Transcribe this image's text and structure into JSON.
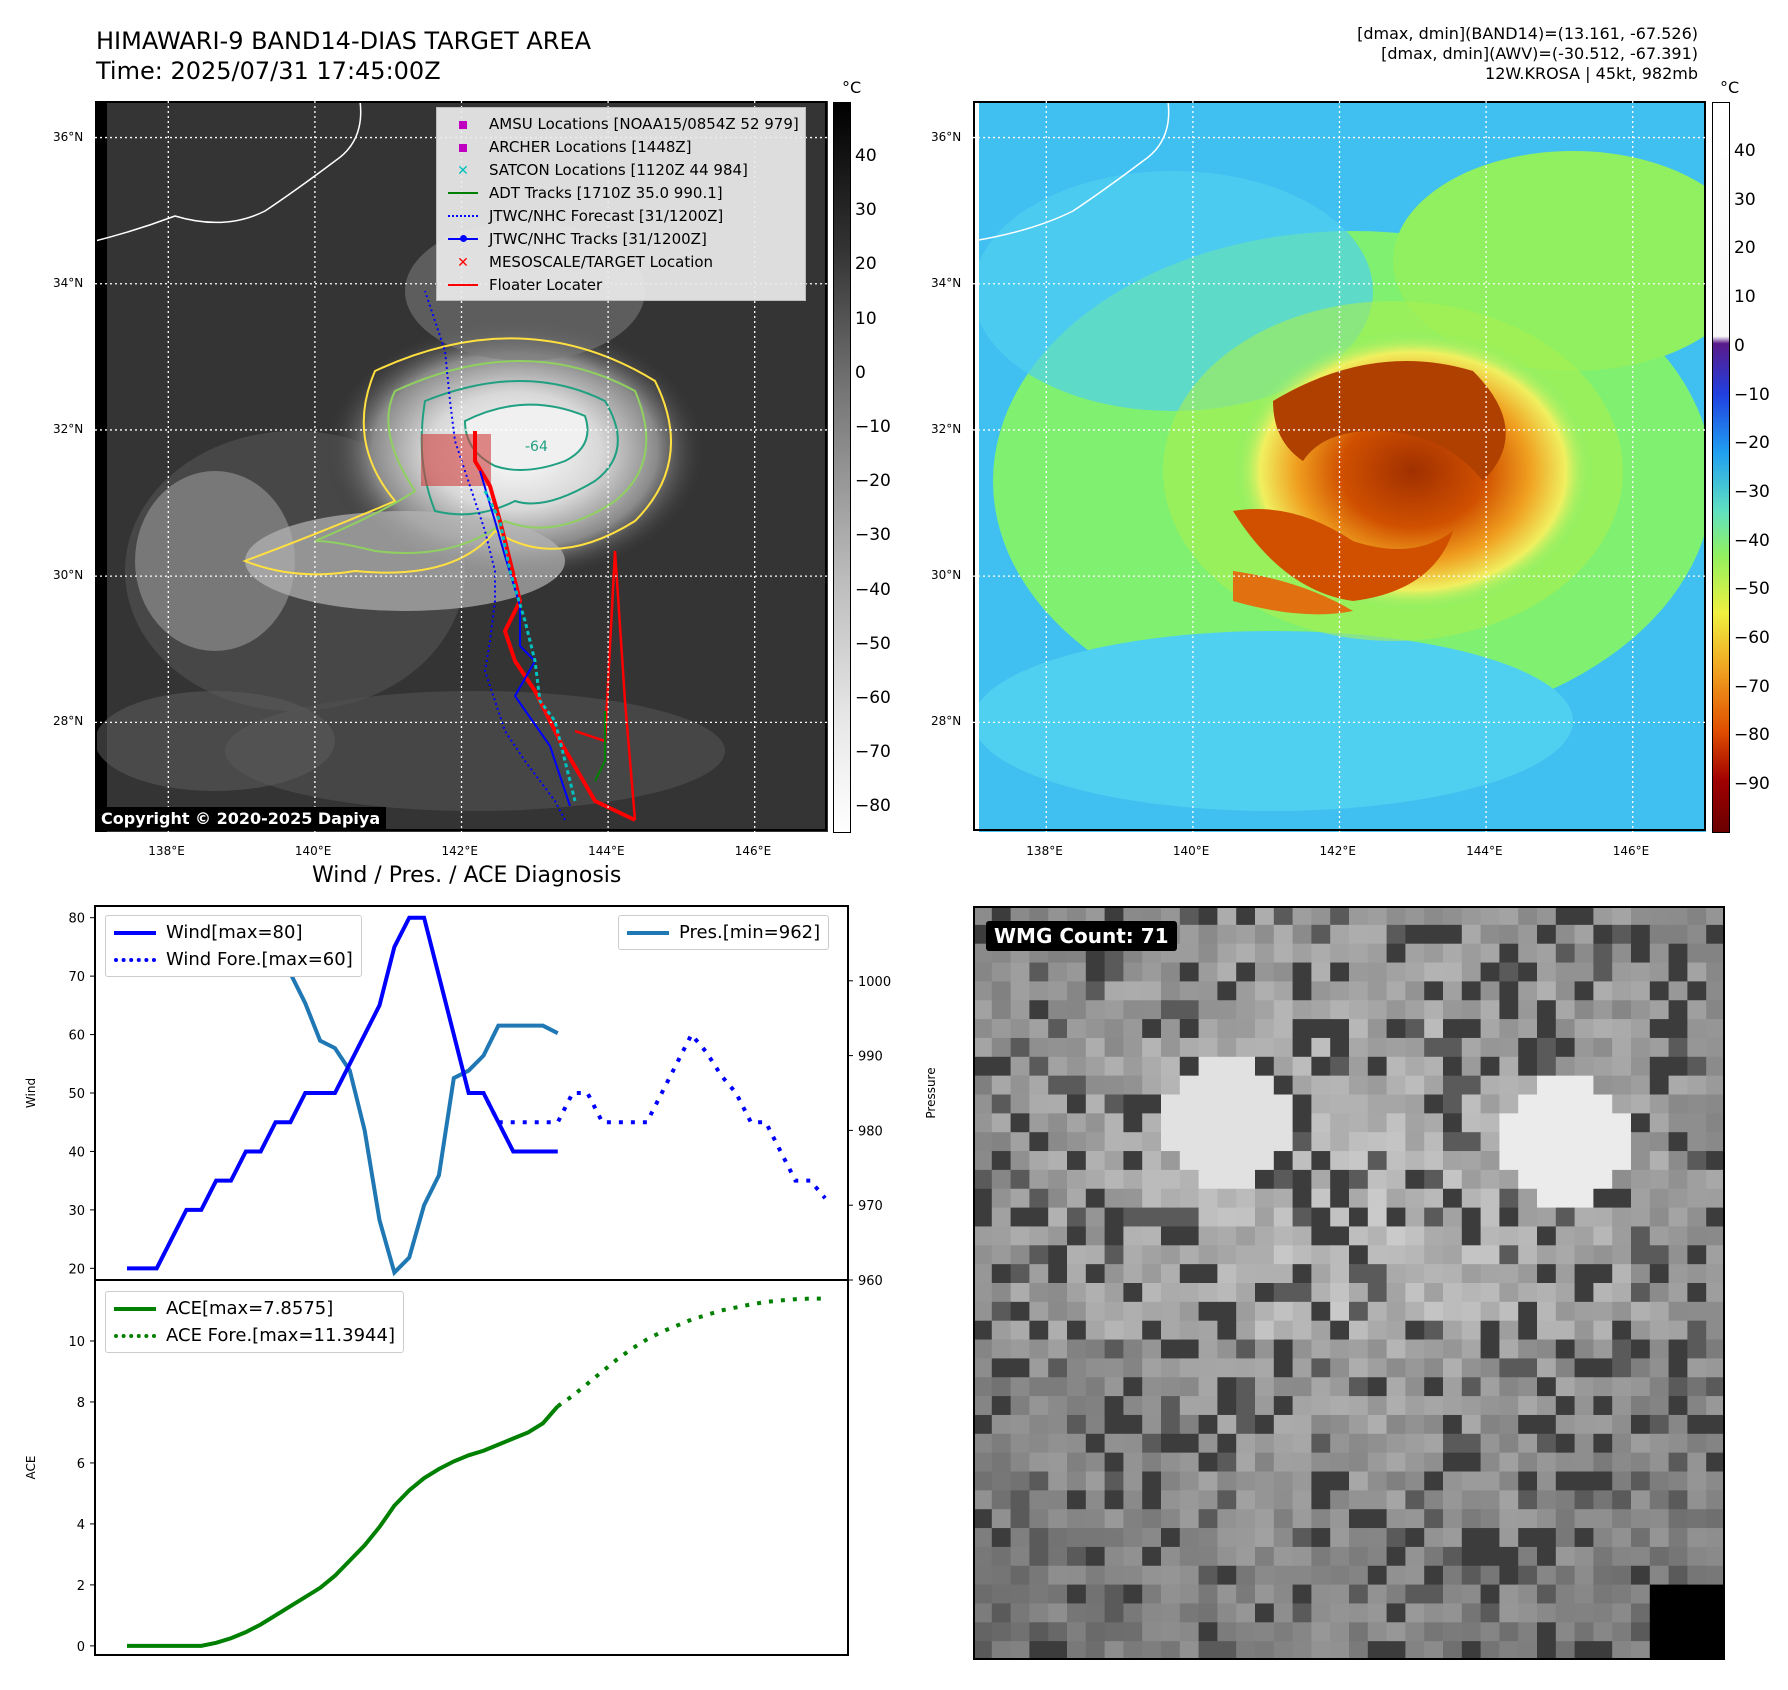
{
  "header": {
    "title_line1": "HIMAWARI-9 BAND14-DIAS TARGET AREA",
    "title_line2": "Time: 2025/07/31 17:45:00Z",
    "info_line1": "[dmax, dmin](BAND14)=(13.161, -67.526)",
    "info_line2": "[dmax, dmin](AWV)=(-30.512, -67.391)",
    "info_line3": "12W.KROSA | 45kt, 982mb"
  },
  "maps": {
    "lat_labels": [
      "36°N",
      "34°N",
      "32°N",
      "30°N",
      "28°N"
    ],
    "lon_labels": [
      "138°E",
      "140°E",
      "142°E",
      "144°E",
      "146°E"
    ],
    "lat_values": [
      36,
      34,
      32,
      30,
      28
    ],
    "lon_values": [
      138,
      140,
      142,
      144,
      146
    ],
    "lon_range": [
      137,
      147
    ],
    "lat_range": [
      26.5,
      36.5
    ],
    "colorbar_unit": "°C",
    "left_colorbar_ticks": [
      "40",
      "30",
      "20",
      "10",
      "0",
      "−10",
      "−20",
      "−30",
      "−40",
      "−50",
      "−60",
      "−70",
      "−80"
    ],
    "right_colorbar_ticks": [
      "40",
      "30",
      "20",
      "10",
      "0",
      "−10",
      "−20",
      "−30",
      "−40",
      "−50",
      "−60",
      "−70",
      "−80",
      "−90"
    ],
    "contour_label": "-64",
    "copyright": "Copyright © 2020-2025 Dapiya",
    "legend": [
      {
        "label": "AMSU Locations [NOAA15/0854Z 52 979]",
        "marker": "square",
        "color": "#c000c0"
      },
      {
        "label": "ARCHER Locations [1448Z]",
        "marker": "square",
        "color": "#c000c0"
      },
      {
        "label": "SATCON Locations [1120Z 44 984]",
        "marker": "x",
        "color": "#00c0c0"
      },
      {
        "label": "ADT Tracks [1710Z 35.0 990.1]",
        "marker": "line",
        "color": "#008000"
      },
      {
        "label": "JTWC/NHC Forecast [31/1200Z]",
        "marker": "dotted",
        "color": "#0000ff"
      },
      {
        "label": "JTWC/NHC Tracks [31/1200Z]",
        "marker": "dotline",
        "color": "#0000ff"
      },
      {
        "label": "MESOSCALE/TARGET Location",
        "marker": "x",
        "color": "#ff0000"
      },
      {
        "label": "Floater Locater",
        "marker": "line",
        "color": "#ff0000"
      }
    ],
    "wmg_label": "WMG Count: 71"
  },
  "chart_data": [
    {
      "type": "line",
      "title": "Wind / Pres. / ACE Diagnosis",
      "ylabel": "Wind",
      "y2label": "Pressure",
      "ylim": [
        18,
        82
      ],
      "y2lim": [
        960,
        1010
      ],
      "yticks": [
        20,
        30,
        40,
        50,
        60,
        70,
        80
      ],
      "y2ticks": [
        960,
        970,
        980,
        990,
        1000
      ],
      "x": [
        0,
        1,
        2,
        3,
        4,
        5,
        6,
        7,
        8,
        9,
        10,
        11,
        12,
        13,
        14,
        15,
        16,
        17,
        18,
        19,
        20,
        21,
        22,
        23,
        24,
        25,
        26,
        27,
        28,
        29,
        30,
        31,
        32,
        33,
        34,
        35
      ],
      "series": [
        {
          "name": "Wind[max=80]",
          "color": "#0000ff",
          "style": "solid",
          "x": [
            0,
            1,
            2,
            3,
            4,
            5,
            6,
            7,
            8,
            9,
            10,
            11,
            12,
            13,
            14,
            15,
            16,
            17,
            18,
            19,
            20,
            21,
            22,
            23,
            24,
            25,
            26,
            27,
            28,
            29
          ],
          "values": [
            20,
            20,
            20,
            25,
            30,
            30,
            35,
            35,
            40,
            40,
            45,
            45,
            50,
            50,
            50,
            55,
            60,
            65,
            75,
            80,
            80,
            70,
            60,
            50,
            50,
            45,
            40,
            40,
            40,
            40
          ]
        },
        {
          "name": "Wind Fore.[max=60]",
          "color": "#0000ff",
          "style": "dotted",
          "x": [
            23,
            24,
            25,
            26,
            27,
            28,
            29,
            30,
            31,
            32,
            33,
            34,
            35,
            36,
            37,
            38,
            39,
            40,
            41,
            42,
            43,
            44,
            45,
            46,
            47
          ],
          "values": [
            50,
            50,
            45,
            45,
            45,
            45,
            45,
            50,
            50,
            45,
            45,
            45,
            45,
            50,
            55,
            60,
            57,
            53,
            50,
            45,
            45,
            40,
            35,
            35,
            32
          ]
        },
        {
          "name": "Pres.[min=962]",
          "color": "#1f77b4",
          "style": "solid",
          "axis": "right",
          "x": [
            0,
            1,
            2,
            3,
            4,
            5,
            6,
            7,
            8,
            9,
            10,
            11,
            12,
            13,
            14,
            15,
            16,
            17,
            18,
            19,
            20,
            21,
            22,
            23,
            24,
            25,
            26,
            27,
            28,
            29
          ],
          "values": [
            1008,
            1008,
            1008,
            1006,
            1006,
            1005,
            1005,
            1003,
            1003,
            1001,
            1001,
            1001,
            997,
            992,
            991,
            988,
            980,
            968,
            961,
            963,
            970,
            974,
            987,
            988,
            990,
            994,
            994,
            994,
            994,
            993
          ]
        }
      ]
    },
    {
      "type": "line",
      "ylabel": "ACE",
      "ylim": [
        -0.3,
        12
      ],
      "yticks": [
        0,
        2,
        4,
        6,
        8,
        10
      ],
      "series": [
        {
          "name": "ACE[max=7.8575]",
          "color": "#008000",
          "style": "solid",
          "x": [
            0,
            1,
            2,
            3,
            4,
            5,
            6,
            7,
            8,
            9,
            10,
            11,
            12,
            13,
            14,
            15,
            16,
            17,
            18,
            19,
            20,
            21,
            22,
            23,
            24,
            25,
            26,
            27,
            28,
            29
          ],
          "values": [
            0,
            0,
            0,
            0,
            0,
            0,
            0.1,
            0.25,
            0.45,
            0.7,
            1.0,
            1.3,
            1.6,
            1.9,
            2.3,
            2.8,
            3.3,
            3.9,
            4.6,
            5.1,
            5.5,
            5.8,
            6.05,
            6.25,
            6.4,
            6.6,
            6.8,
            7.0,
            7.3,
            7.86
          ]
        },
        {
          "name": "ACE Fore.[max=11.3944]",
          "color": "#008000",
          "style": "dotted",
          "x": [
            29,
            30,
            31,
            32,
            33,
            34,
            35,
            36,
            37,
            38,
            39,
            40,
            41,
            42,
            43,
            44,
            45,
            46,
            47
          ],
          "values": [
            7.86,
            8.2,
            8.6,
            9.0,
            9.4,
            9.75,
            10.05,
            10.3,
            10.5,
            10.7,
            10.85,
            11.0,
            11.1,
            11.2,
            11.28,
            11.33,
            11.37,
            11.39,
            11.39
          ]
        }
      ]
    }
  ]
}
